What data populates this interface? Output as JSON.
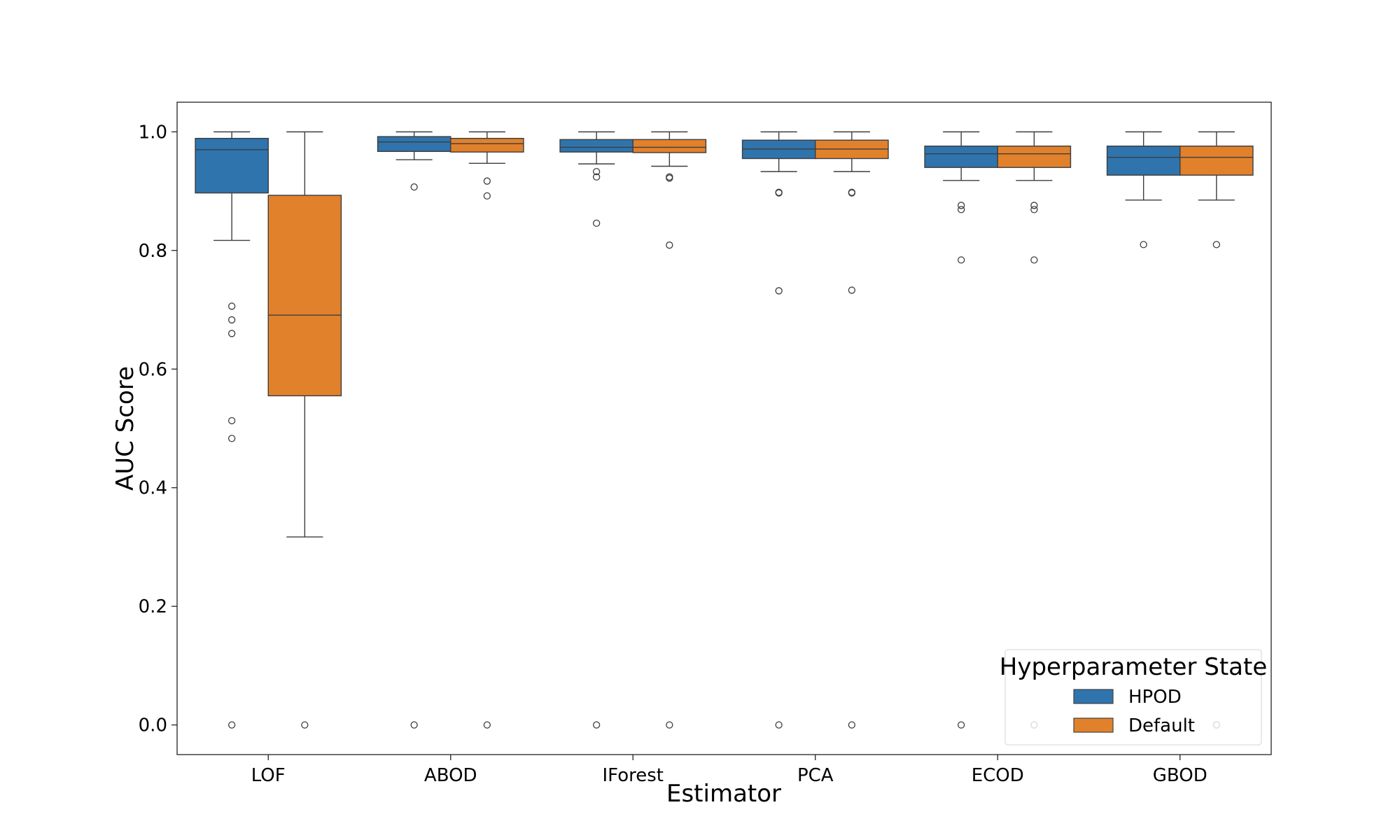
{
  "chart_data": {
    "type": "box",
    "xlabel": "Estimator",
    "ylabel": "AUC Score",
    "ylim": [
      -0.05,
      1.05
    ],
    "y_ticks": [
      0.0,
      0.2,
      0.4,
      0.6,
      0.8,
      1.0
    ],
    "y_tick_labels": [
      "0.0",
      "0.2",
      "0.4",
      "0.6",
      "0.8",
      "1.0"
    ],
    "grid": false,
    "categories": [
      "LOF",
      "ABOD",
      "IForest",
      "PCA",
      "ECOD",
      "GBOD"
    ],
    "legend": {
      "title": "Hyperparameter State",
      "placement": "lower-right"
    },
    "series": [
      {
        "name": "HPOD",
        "color": "#2f74ad",
        "boxes": [
          {
            "whisker_low": 0.817,
            "q1": 0.897,
            "median": 0.97,
            "q3": 0.989,
            "whisker_high": 1.0,
            "outliers": [
              0.706,
              0.683,
              0.66,
              0.513,
              0.483,
              0.0
            ]
          },
          {
            "whisker_low": 0.953,
            "q1": 0.967,
            "median": 0.983,
            "q3": 0.992,
            "whisker_high": 1.0,
            "outliers": [
              0.907,
              0.0
            ]
          },
          {
            "whisker_low": 0.946,
            "q1": 0.966,
            "median": 0.974,
            "q3": 0.987,
            "whisker_high": 1.0,
            "outliers": [
              0.933,
              0.924,
              0.846,
              0.0
            ]
          },
          {
            "whisker_low": 0.933,
            "q1": 0.955,
            "median": 0.971,
            "q3": 0.986,
            "whisker_high": 1.0,
            "outliers": [
              0.898,
              0.897,
              0.732,
              0.0
            ]
          },
          {
            "whisker_low": 0.918,
            "q1": 0.94,
            "median": 0.963,
            "q3": 0.976,
            "whisker_high": 1.0,
            "outliers": [
              0.876,
              0.869,
              0.784,
              0.0
            ]
          },
          {
            "whisker_low": 0.885,
            "q1": 0.927,
            "median": 0.957,
            "q3": 0.976,
            "whisker_high": 1.0,
            "outliers": [
              0.81
            ]
          }
        ]
      },
      {
        "name": "Default",
        "color": "#e1812c",
        "boxes": [
          {
            "whisker_low": 0.317,
            "q1": 0.555,
            "median": 0.691,
            "q3": 0.893,
            "whisker_high": 1.0,
            "outliers": [
              0.0
            ]
          },
          {
            "whisker_low": 0.947,
            "q1": 0.966,
            "median": 0.98,
            "q3": 0.989,
            "whisker_high": 1.0,
            "outliers": [
              0.917,
              0.892,
              0.0
            ]
          },
          {
            "whisker_low": 0.942,
            "q1": 0.965,
            "median": 0.974,
            "q3": 0.987,
            "whisker_high": 1.0,
            "outliers": [
              0.924,
              0.922,
              0.809,
              0.0
            ]
          },
          {
            "whisker_low": 0.933,
            "q1": 0.955,
            "median": 0.971,
            "q3": 0.986,
            "whisker_high": 1.0,
            "outliers": [
              0.898,
              0.897,
              0.733,
              0.0
            ]
          },
          {
            "whisker_low": 0.918,
            "q1": 0.94,
            "median": 0.963,
            "q3": 0.976,
            "whisker_high": 1.0,
            "outliers": [
              0.876,
              0.869,
              0.784,
              0.0
            ]
          },
          {
            "whisker_low": 0.885,
            "q1": 0.927,
            "median": 0.957,
            "q3": 0.976,
            "whisker_high": 1.0,
            "outliers": [
              0.81,
              0.0
            ]
          }
        ]
      }
    ]
  }
}
